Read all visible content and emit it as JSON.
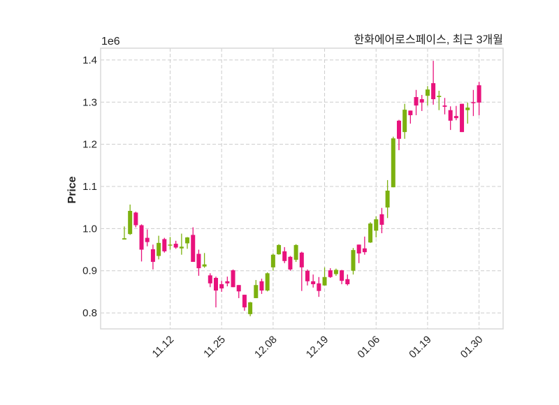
{
  "chart_data": {
    "type": "candlestick",
    "title": "한화에어로스페이스, 최근 3개월",
    "ylabel": "Price",
    "y_multiplier_label": "1e6",
    "ylim": [
      0.762,
      1.428
    ],
    "yticks": [
      0.8,
      0.9,
      1.0,
      1.1,
      1.2,
      1.3,
      1.4
    ],
    "ytick_labels": [
      "0.8",
      "0.9",
      "1.0",
      "1.1",
      "1.2",
      "1.3",
      "1.4"
    ],
    "xticks": [
      {
        "index": 8,
        "label": "11.12"
      },
      {
        "index": 17,
        "label": "11.25"
      },
      {
        "index": 26,
        "label": "12.08"
      },
      {
        "index": 35,
        "label": "12.19"
      },
      {
        "index": 44,
        "label": "01.06"
      },
      {
        "index": 53,
        "label": "01.19"
      },
      {
        "index": 62,
        "label": "01.30"
      }
    ],
    "grid": true,
    "colors": {
      "up": "#7cb10f",
      "down": "#e8127c",
      "grid": "#cccccc",
      "frame": "#d8d8d8"
    },
    "ohlc_columns": [
      "open",
      "high",
      "low",
      "close"
    ],
    "ohlc": [
      [
        0.974,
        1.005,
        0.974,
        0.977
      ],
      [
        0.987,
        1.057,
        0.985,
        1.042
      ],
      [
        1.038,
        1.04,
        1.003,
        1.008
      ],
      [
        1.008,
        1.01,
        0.922,
        0.95
      ],
      [
        0.978,
        0.998,
        0.958,
        0.968
      ],
      [
        0.951,
        0.962,
        0.903,
        0.921
      ],
      [
        0.935,
        0.983,
        0.927,
        0.966
      ],
      [
        0.975,
        0.978,
        0.943,
        0.946
      ],
      [
        0.96,
        0.98,
        0.95,
        0.962
      ],
      [
        0.964,
        0.971,
        0.952,
        0.955
      ],
      [
        0.953,
        0.988,
        0.938,
        0.957
      ],
      [
        0.965,
        0.98,
        0.952,
        0.979
      ],
      [
        0.985,
        1.003,
        0.921,
        0.921
      ],
      [
        0.94,
        0.95,
        0.888,
        0.906
      ],
      [
        0.91,
        0.942,
        0.907,
        0.915
      ],
      [
        0.889,
        0.894,
        0.861,
        0.87
      ],
      [
        0.883,
        0.886,
        0.813,
        0.853
      ],
      [
        0.868,
        0.876,
        0.85,
        0.858
      ],
      [
        0.875,
        0.886,
        0.863,
        0.87
      ],
      [
        0.901,
        0.903,
        0.861,
        0.861
      ],
      [
        0.866,
        0.866,
        0.835,
        0.851
      ],
      [
        0.843,
        0.843,
        0.805,
        0.813
      ],
      [
        0.797,
        0.826,
        0.792,
        0.825
      ],
      [
        0.835,
        0.878,
        0.835,
        0.866
      ],
      [
        0.875,
        0.881,
        0.845,
        0.853
      ],
      [
        0.853,
        0.896,
        0.851,
        0.894
      ],
      [
        0.908,
        0.941,
        0.9,
        0.938
      ],
      [
        0.939,
        0.963,
        0.938,
        0.961
      ],
      [
        0.946,
        0.956,
        0.918,
        0.923
      ],
      [
        0.933,
        0.935,
        0.9,
        0.903
      ],
      [
        0.926,
        0.963,
        0.921,
        0.961
      ],
      [
        0.943,
        0.945,
        0.852,
        0.908
      ],
      [
        0.9,
        0.903,
        0.865,
        0.875
      ],
      [
        0.875,
        0.891,
        0.86,
        0.868
      ],
      [
        0.87,
        0.885,
        0.838,
        0.852
      ],
      [
        0.865,
        0.908,
        0.865,
        0.885
      ],
      [
        0.901,
        0.906,
        0.883,
        0.885
      ],
      [
        0.892,
        0.905,
        0.888,
        0.902
      ],
      [
        0.901,
        0.902,
        0.868,
        0.876
      ],
      [
        0.88,
        0.891,
        0.865,
        0.868
      ],
      [
        0.9,
        0.954,
        0.891,
        0.949
      ],
      [
        0.962,
        0.962,
        0.918,
        0.941
      ],
      [
        0.953,
        0.981,
        0.938,
        0.944
      ],
      [
        0.967,
        1.015,
        0.966,
        1.012
      ],
      [
        0.995,
        1.029,
        0.979,
        1.022
      ],
      [
        1.034,
        1.049,
        0.989,
        1.009
      ],
      [
        1.05,
        1.115,
        1.025,
        1.09
      ],
      [
        1.098,
        1.218,
        1.098,
        1.214
      ],
      [
        1.256,
        1.258,
        1.186,
        1.213
      ],
      [
        1.229,
        1.296,
        1.213,
        1.282
      ],
      [
        1.28,
        1.28,
        1.249,
        1.269
      ],
      [
        1.312,
        1.329,
        1.269,
        1.292
      ],
      [
        1.307,
        1.317,
        1.279,
        1.299
      ],
      [
        1.315,
        1.338,
        1.292,
        1.33
      ],
      [
        1.345,
        1.398,
        1.294,
        1.307
      ],
      [
        1.312,
        1.327,
        1.281,
        1.315
      ],
      [
        1.292,
        1.31,
        1.271,
        1.289
      ],
      [
        1.281,
        1.29,
        1.234,
        1.256
      ],
      [
        1.267,
        1.291,
        1.257,
        1.262
      ],
      [
        1.296,
        1.296,
        1.229,
        1.229
      ],
      [
        1.281,
        1.299,
        1.249,
        1.287
      ],
      [
        1.3,
        1.329,
        1.267,
        1.299
      ],
      [
        1.34,
        1.348,
        1.269,
        1.299
      ]
    ]
  }
}
